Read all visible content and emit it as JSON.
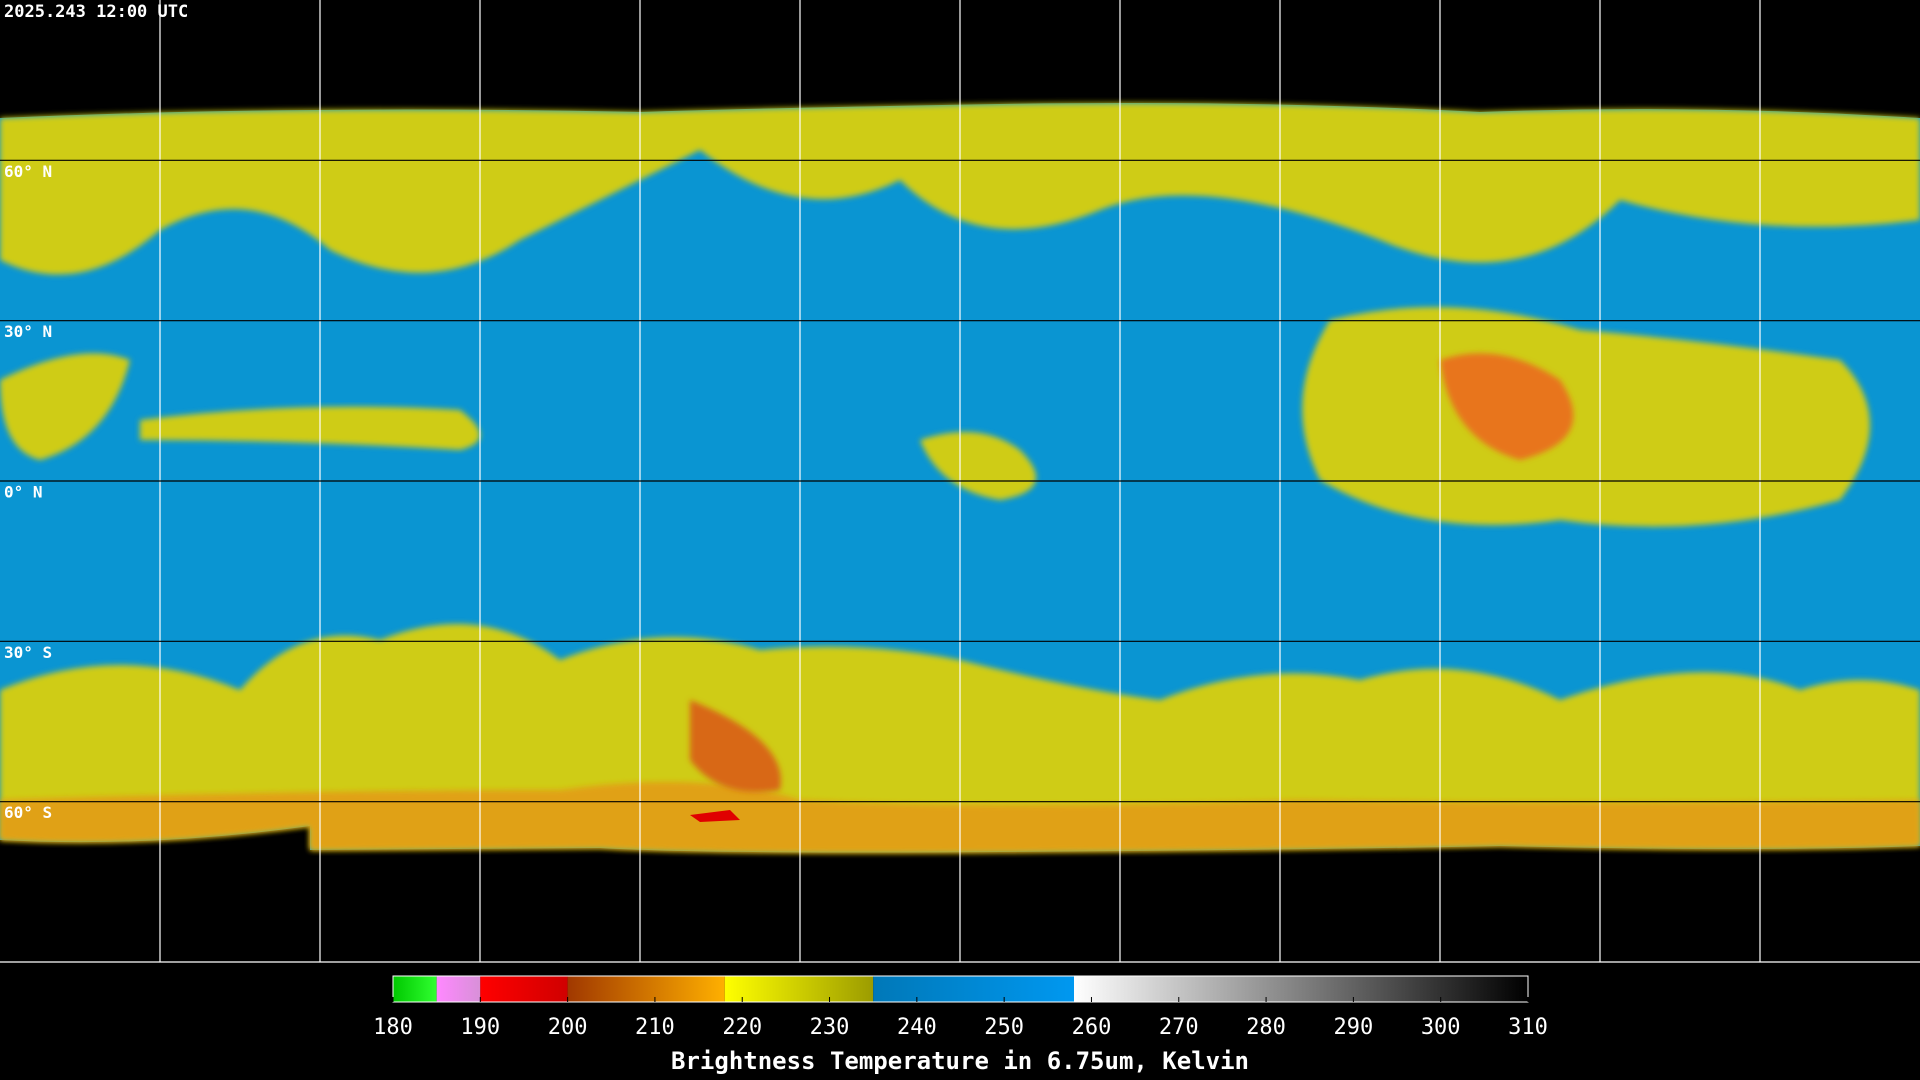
{
  "header": {
    "timestamp": "2025.243 12:00 UTC"
  },
  "map": {
    "lat_labels": [
      "60° N",
      "30° N",
      "0° N",
      "30° S",
      "60° S"
    ]
  },
  "colorbar": {
    "lim": [
      180,
      310
    ],
    "ticks": [
      180,
      190,
      200,
      210,
      220,
      230,
      240,
      250,
      260,
      270,
      280,
      290,
      300,
      310
    ],
    "segments": [
      {
        "from": 180,
        "to": 185,
        "colors": [
          "#00c800",
          "#30ff30"
        ]
      },
      {
        "from": 185,
        "to": 190,
        "colors": [
          "#ff88ff",
          "#d890d8"
        ]
      },
      {
        "from": 190,
        "to": 200,
        "colors": [
          "#ff0000",
          "#d00000"
        ]
      },
      {
        "from": 200,
        "to": 218,
        "colors": [
          "#a03800",
          "#ffb000"
        ]
      },
      {
        "from": 218,
        "to": 235,
        "colors": [
          "#ffff00",
          "#9c9c00"
        ]
      },
      {
        "from": 235,
        "to": 258,
        "colors": [
          "#0078b8",
          "#0098f0"
        ]
      },
      {
        "from": 258,
        "to": 310,
        "colors": [
          "#ffffff",
          "#000000"
        ]
      }
    ],
    "title": "Brightness Temperature in 6.75um, Kelvin"
  }
}
